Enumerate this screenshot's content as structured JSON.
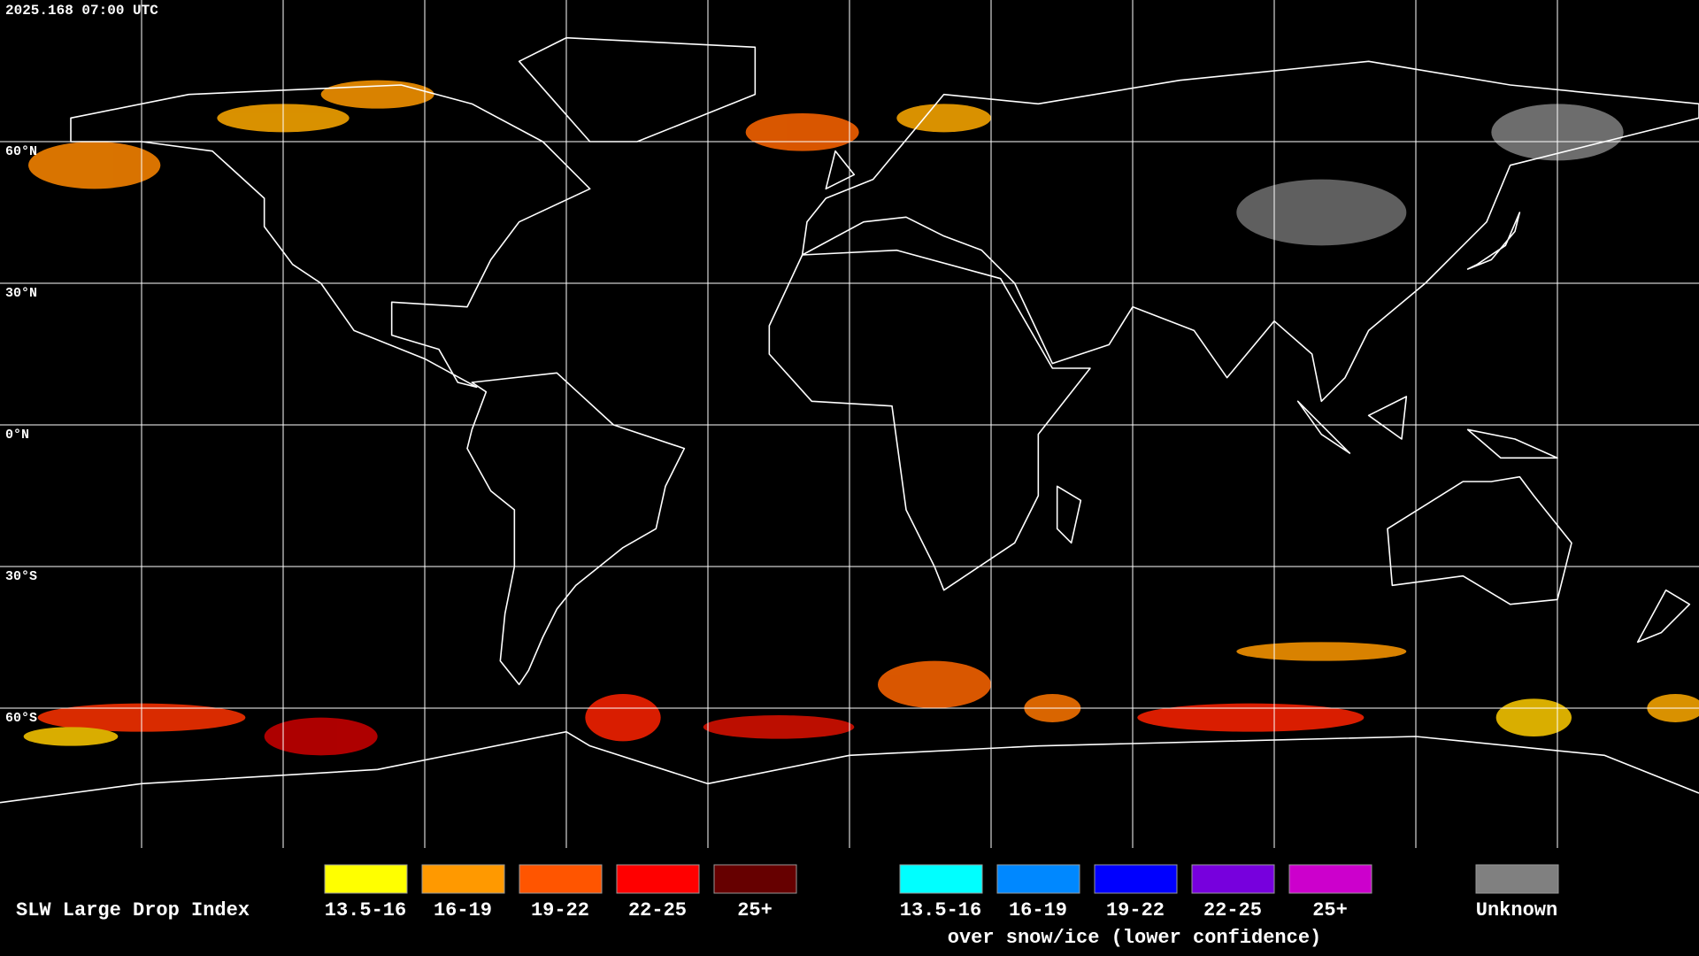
{
  "header": {
    "timestamp": "2025.168 07:00 UTC"
  },
  "map": {
    "latitude_labels": [
      "60°N",
      "30°N",
      "0°N",
      "30°S",
      "60°S"
    ]
  },
  "legend": {
    "title": "SLW Large Drop Index",
    "liquid": [
      {
        "label": "13.5-16",
        "color": "#ffff00"
      },
      {
        "label": "16-19",
        "color": "#ff9900"
      },
      {
        "label": "19-22",
        "color": "#ff5500"
      },
      {
        "label": "22-25",
        "color": "#ff0000"
      },
      {
        "label": "25+",
        "color": "#660000"
      }
    ],
    "snow_ice": [
      {
        "label": "13.5-16",
        "color": "#00ffff"
      },
      {
        "label": "16-19",
        "color": "#0088ff"
      },
      {
        "label": "19-22",
        "color": "#0000ff"
      },
      {
        "label": "22-25",
        "color": "#7700dd"
      },
      {
        "label": "25+",
        "color": "#cc00cc"
      }
    ],
    "snow_ice_caption": "over snow/ice (lower confidence)",
    "unknown": {
      "label": "Unknown",
      "color": "#808080"
    }
  }
}
